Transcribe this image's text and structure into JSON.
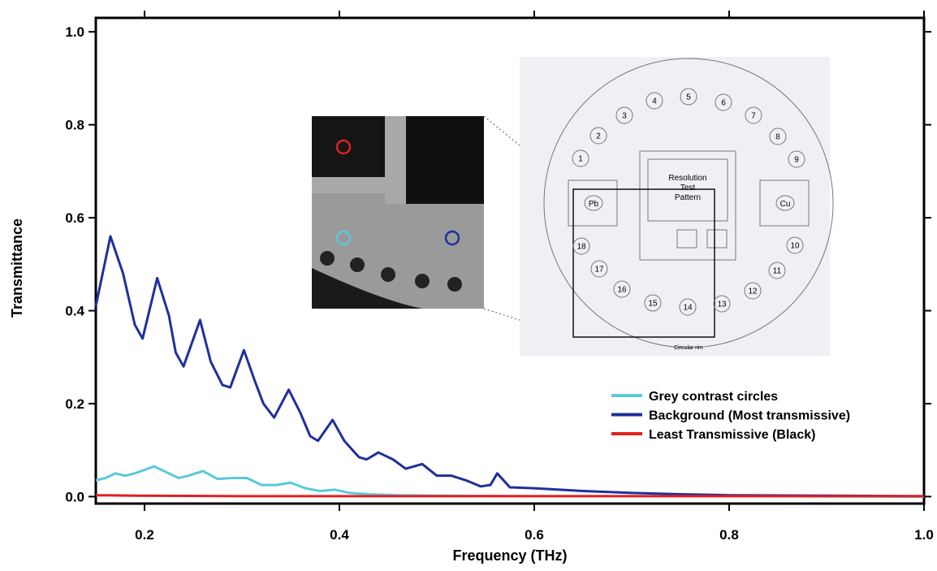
{
  "chart_data": {
    "type": "line",
    "x_label": "Frequency (THz)",
    "y_label": "Transmittance",
    "xlim": [
      0.15,
      1.0
    ],
    "ylim": [
      -0.015,
      1.03
    ],
    "xticks": [
      0.2,
      0.4,
      0.6,
      0.8,
      {
        "value": 1,
        "label": "1.0"
      }
    ],
    "yticks": [
      {
        "value": 0,
        "label": "0.0"
      },
      0.2,
      0.4,
      0.6,
      0.8,
      {
        "value": 1,
        "label": "1.0"
      }
    ],
    "legend": "right",
    "series": [
      {
        "name": "Grey contrast circles",
        "color": "#5bc8dc",
        "x": [
          0.15,
          0.16,
          0.17,
          0.18,
          0.19,
          0.21,
          0.225,
          0.235,
          0.245,
          0.26,
          0.275,
          0.29,
          0.305,
          0.32,
          0.335,
          0.35,
          0.365,
          0.38,
          0.395,
          0.41,
          0.43,
          0.46,
          0.5,
          0.6,
          0.8,
          1.0
        ],
        "values": [
          0.035,
          0.04,
          0.05,
          0.045,
          0.05,
          0.065,
          0.05,
          0.04,
          0.045,
          0.055,
          0.038,
          0.04,
          0.04,
          0.025,
          0.025,
          0.03,
          0.018,
          0.012,
          0.015,
          0.008,
          0.005,
          0.003,
          0.002,
          0.001,
          0.001,
          0
        ]
      },
      {
        "name": "Background (Most transmissive)",
        "color": "#1f2f9c",
        "x": [
          0.15,
          0.165,
          0.178,
          0.19,
          0.198,
          0.213,
          0.225,
          0.232,
          0.24,
          0.257,
          0.268,
          0.28,
          0.288,
          0.302,
          0.313,
          0.322,
          0.333,
          0.348,
          0.36,
          0.37,
          0.378,
          0.393,
          0.405,
          0.42,
          0.428,
          0.44,
          0.455,
          0.468,
          0.485,
          0.5,
          0.515,
          0.53,
          0.545,
          0.555,
          0.562,
          0.575,
          0.6,
          0.65,
          0.7,
          0.75,
          0.8,
          0.9,
          1.0
        ],
        "values": [
          0.41,
          0.56,
          0.48,
          0.37,
          0.34,
          0.47,
          0.39,
          0.31,
          0.28,
          0.38,
          0.29,
          0.24,
          0.235,
          0.315,
          0.25,
          0.2,
          0.17,
          0.23,
          0.18,
          0.13,
          0.12,
          0.165,
          0.12,
          0.085,
          0.08,
          0.095,
          0.08,
          0.06,
          0.07,
          0.045,
          0.045,
          0.035,
          0.022,
          0.025,
          0.05,
          0.02,
          0.018,
          0.012,
          0.008,
          0.005,
          0.003,
          0.002,
          0.001
        ]
      },
      {
        "name": "Least Transmissive (Black)",
        "color": "#e02020",
        "x": [
          0.15,
          0.19,
          0.3,
          0.5,
          0.7,
          1.0
        ],
        "values": [
          0.003,
          0.002,
          0.001,
          0.001,
          0.001,
          0.001
        ]
      }
    ]
  },
  "inset": {
    "numbers": [
      "1",
      "2",
      "3",
      "4",
      "5",
      "6",
      "7",
      "8",
      "9",
      "10",
      "11",
      "12",
      "13",
      "14",
      "15",
      "16",
      "17",
      "18"
    ],
    "pattern": [
      "Resolution",
      "Test",
      "Pattern"
    ],
    "left_box": "Pb",
    "right_box": "Cu",
    "rim": "Circular rim"
  }
}
